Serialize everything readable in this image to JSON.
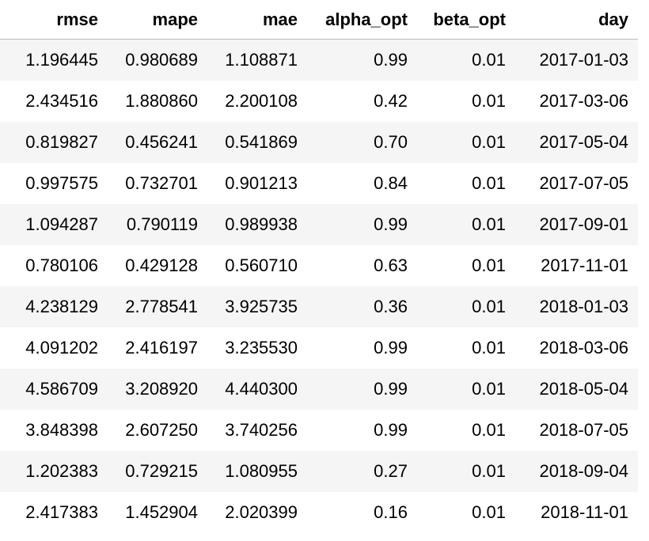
{
  "table": {
    "columns": [
      "rmse",
      "mape",
      "mae",
      "alpha_opt",
      "beta_opt",
      "day"
    ],
    "rows": [
      [
        "1.196445",
        "0.980689",
        "1.108871",
        "0.99",
        "0.01",
        "2017-01-03"
      ],
      [
        "2.434516",
        "1.880860",
        "2.200108",
        "0.42",
        "0.01",
        "2017-03-06"
      ],
      [
        "0.819827",
        "0.456241",
        "0.541869",
        "0.70",
        "0.01",
        "2017-05-04"
      ],
      [
        "0.997575",
        "0.732701",
        "0.901213",
        "0.84",
        "0.01",
        "2017-07-05"
      ],
      [
        "1.094287",
        "0.790119",
        "0.989938",
        "0.99",
        "0.01",
        "2017-09-01"
      ],
      [
        "0.780106",
        "0.429128",
        "0.560710",
        "0.63",
        "0.01",
        "2017-11-01"
      ],
      [
        "4.238129",
        "2.778541",
        "3.925735",
        "0.36",
        "0.01",
        "2018-01-03"
      ],
      [
        "4.091202",
        "2.416197",
        "3.235530",
        "0.99",
        "0.01",
        "2018-03-06"
      ],
      [
        "4.586709",
        "3.208920",
        "4.440300",
        "0.99",
        "0.01",
        "2018-05-04"
      ],
      [
        "3.848398",
        "2.607250",
        "3.740256",
        "0.99",
        "0.01",
        "2018-07-05"
      ],
      [
        "1.202383",
        "0.729215",
        "1.080955",
        "0.27",
        "0.01",
        "2018-09-04"
      ],
      [
        "2.417383",
        "1.452904",
        "2.020399",
        "0.16",
        "0.01",
        "2018-11-01"
      ]
    ]
  }
}
